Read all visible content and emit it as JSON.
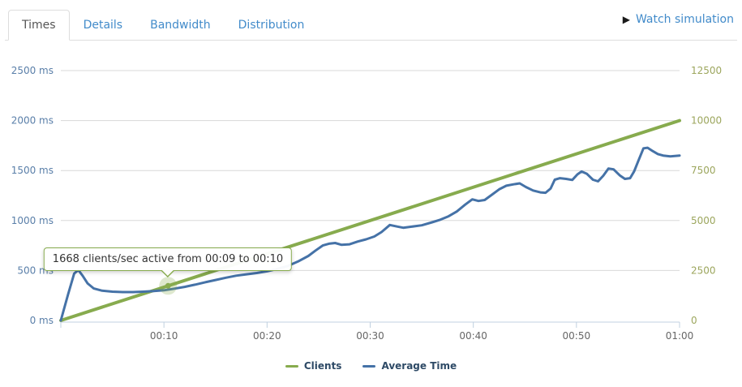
{
  "tabs": {
    "items": [
      {
        "label": "Times",
        "active": true
      },
      {
        "label": "Details",
        "active": false
      },
      {
        "label": "Bandwidth",
        "active": false
      },
      {
        "label": "Distribution",
        "active": false
      }
    ]
  },
  "header": {
    "watch_simulation": {
      "play_icon": "▶",
      "label": "Watch simulation"
    }
  },
  "tooltip": {
    "text": "1668 clients/sec active from 00:09 to 00:10",
    "clients_per_sec": 1668,
    "from": "00:09",
    "to": "00:10"
  },
  "chart_data": {
    "type": "line",
    "title": "",
    "grid": true,
    "legend_position": "bottom-center",
    "gridline_color": "#D8D8D8",
    "axis_line_color": "#C0D0E0",
    "x_axis": {
      "max_minutes": 60,
      "label_color": "#666666",
      "ticks": [
        {
          "minute": 0,
          "label": ""
        },
        {
          "minute": 10,
          "label": "00:10"
        },
        {
          "minute": 20,
          "label": "00:20"
        },
        {
          "minute": 30,
          "label": "00:30"
        },
        {
          "minute": 40,
          "label": "00:40"
        },
        {
          "minute": 50,
          "label": "00:50"
        },
        {
          "minute": 60,
          "label": "01:00"
        }
      ]
    },
    "left_axis": {
      "max": 2500,
      "color": "#5A7FA9",
      "unit": "ms",
      "series": "Average Time",
      "ticks": [
        {
          "value": 0,
          "label": "0 ms"
        },
        {
          "value": 500,
          "label": "500 ms"
        },
        {
          "value": 1000,
          "label": "1000 ms"
        },
        {
          "value": 1500,
          "label": "1500 ms"
        },
        {
          "value": 2000,
          "label": "2000 ms"
        },
        {
          "value": 2500,
          "label": "2500 ms"
        }
      ]
    },
    "right_axis": {
      "max": 12500,
      "color": "#9CA65D",
      "unit": "clients",
      "series": "Clients",
      "ticks": [
        {
          "value": 0,
          "label": "0"
        },
        {
          "value": 2500,
          "label": "2500"
        },
        {
          "value": 5000,
          "label": "5000"
        },
        {
          "value": 7500,
          "label": "7500"
        },
        {
          "value": 10000,
          "label": "10000"
        },
        {
          "value": 12500,
          "label": "12500"
        }
      ]
    },
    "series": [
      {
        "name": "Clients",
        "color": "#87AB4E",
        "axis": "right",
        "width": 4,
        "points": [
          [
            0,
            0
          ],
          [
            60,
            10000
          ]
        ]
      },
      {
        "name": "Average Time",
        "color": "#4572A7",
        "axis": "left",
        "width": 3,
        "points": [
          [
            0,
            0
          ],
          [
            0.7,
            260
          ],
          [
            1.3,
            470
          ],
          [
            1.7,
            505
          ],
          [
            2.1,
            450
          ],
          [
            2.6,
            370
          ],
          [
            3.2,
            320
          ],
          [
            4,
            298
          ],
          [
            5,
            288
          ],
          [
            6,
            284
          ],
          [
            7,
            284
          ],
          [
            8,
            288
          ],
          [
            9,
            294
          ],
          [
            10,
            302
          ],
          [
            11,
            318
          ],
          [
            12,
            336
          ],
          [
            13,
            358
          ],
          [
            14,
            382
          ],
          [
            15,
            405
          ],
          [
            16,
            428
          ],
          [
            17,
            448
          ],
          [
            18,
            462
          ],
          [
            19,
            475
          ],
          [
            20,
            492
          ],
          [
            21,
            516
          ],
          [
            22,
            545
          ],
          [
            23,
            590
          ],
          [
            24,
            645
          ],
          [
            24.7,
            700
          ],
          [
            25.4,
            750
          ],
          [
            26,
            768
          ],
          [
            26.6,
            775
          ],
          [
            27.2,
            757
          ],
          [
            28,
            762
          ],
          [
            28.8,
            790
          ],
          [
            29.6,
            812
          ],
          [
            30.4,
            840
          ],
          [
            31.1,
            885
          ],
          [
            31.9,
            955
          ],
          [
            32.6,
            940
          ],
          [
            33.2,
            928
          ],
          [
            34,
            938
          ],
          [
            35,
            952
          ],
          [
            36,
            982
          ],
          [
            36.8,
            1008
          ],
          [
            37.6,
            1042
          ],
          [
            38.4,
            1090
          ],
          [
            39.2,
            1158
          ],
          [
            39.9,
            1212
          ],
          [
            40.5,
            1196
          ],
          [
            41.1,
            1205
          ],
          [
            41.8,
            1258
          ],
          [
            42.5,
            1312
          ],
          [
            43.2,
            1348
          ],
          [
            43.9,
            1362
          ],
          [
            44.5,
            1372
          ],
          [
            45.1,
            1335
          ],
          [
            45.8,
            1300
          ],
          [
            46.5,
            1282
          ],
          [
            47,
            1278
          ],
          [
            47.5,
            1320
          ],
          [
            47.9,
            1408
          ],
          [
            48.4,
            1424
          ],
          [
            49,
            1416
          ],
          [
            49.6,
            1406
          ],
          [
            50.1,
            1462
          ],
          [
            50.5,
            1490
          ],
          [
            51,
            1468
          ],
          [
            51.6,
            1408
          ],
          [
            52.1,
            1392
          ],
          [
            52.6,
            1448
          ],
          [
            53.1,
            1520
          ],
          [
            53.6,
            1512
          ],
          [
            54.2,
            1452
          ],
          [
            54.7,
            1416
          ],
          [
            55.2,
            1424
          ],
          [
            55.6,
            1492
          ],
          [
            56,
            1596
          ],
          [
            56.5,
            1722
          ],
          [
            56.9,
            1728
          ],
          [
            57.4,
            1695
          ],
          [
            57.9,
            1665
          ],
          [
            58.4,
            1650
          ],
          [
            59.1,
            1642
          ],
          [
            60,
            1650
          ]
        ]
      }
    ],
    "marker": {
      "series": "Clients",
      "minute": 10.4,
      "value": 1733
    }
  }
}
